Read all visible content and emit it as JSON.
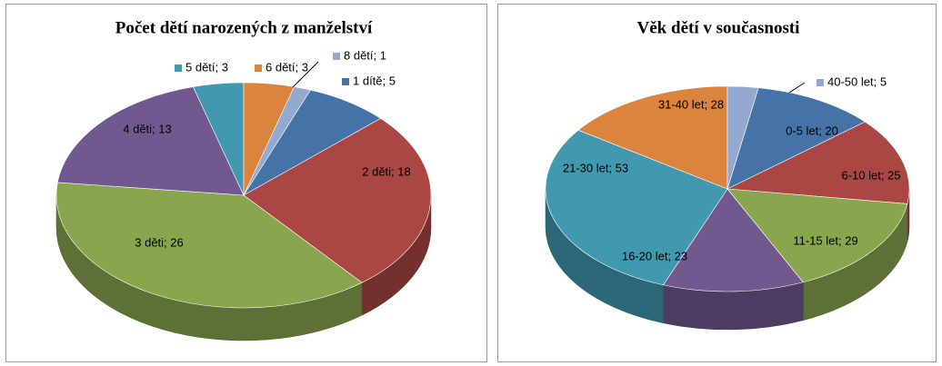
{
  "chart_data": [
    {
      "type": "pie",
      "title": "Počet dětí narozených  z manželství",
      "values": [
        5,
        18,
        26,
        13,
        3,
        3,
        1
      ],
      "value_labels": [
        "1 dítě; 5",
        "2 děti; 18",
        "3 děti; 26",
        "4 děti; 13",
        "5 dětí; 3",
        "6 dětí; 3",
        "8 dětí; 1"
      ],
      "colors": [
        "#4572a7",
        "#aa4643",
        "#89a54e",
        "#71588f",
        "#4198af",
        "#db843d",
        "#93a9cf"
      ]
    },
    {
      "type": "pie",
      "title": "Věk dětí v současnosti",
      "values": [
        20,
        25,
        29,
        23,
        53,
        28,
        5
      ],
      "value_labels": [
        "0-5 let; 20",
        "6-10 let; 25",
        "11-15 let; 29",
        "16-20 let; 23",
        "21-30 let; 53",
        "31-40 let; 28",
        "40-50 let; 5"
      ],
      "colors": [
        "#4572a7",
        "#aa4643",
        "#89a54e",
        "#71588f",
        "#4198af",
        "#db843d",
        "#93a9cf"
      ]
    }
  ]
}
